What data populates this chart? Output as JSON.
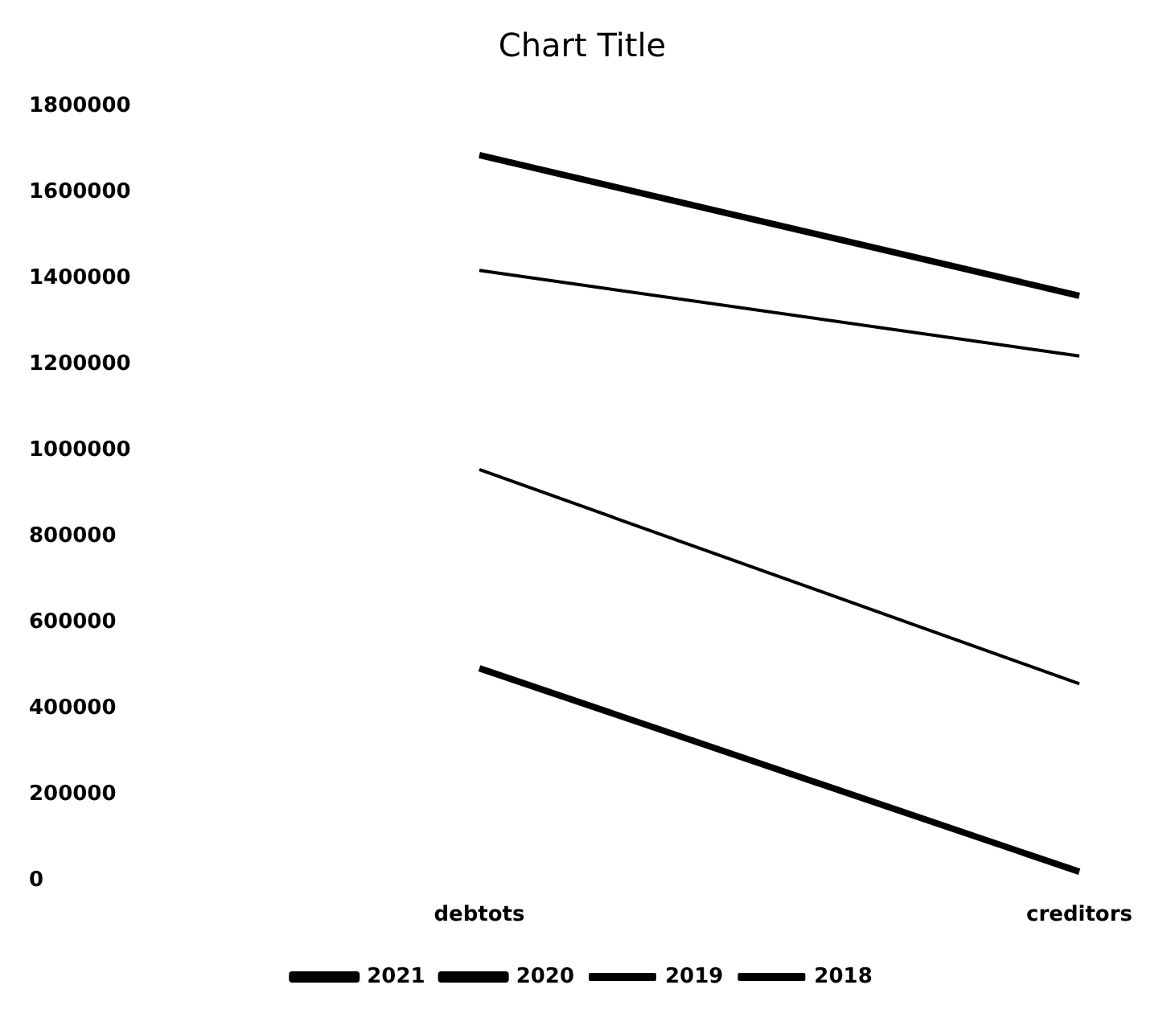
{
  "chart_data": {
    "type": "line",
    "title": "Chart Title",
    "categories": [
      "debtots",
      "creditors"
    ],
    "series": [
      {
        "name": "2021",
        "color": "#000000",
        "values": [
          1686000,
          1359000
        ]
      },
      {
        "name": "2020",
        "color": "#000000",
        "values": [
          493000,
          20000
        ]
      },
      {
        "name": "2019",
        "color": "#000000",
        "values": [
          1418000,
          1219000
        ]
      },
      {
        "name": "2018",
        "color": "#000000",
        "values": [
          955000,
          457000
        ]
      }
    ],
    "ylim": [
      0,
      1800000
    ],
    "yticks": [
      0,
      200000,
      400000,
      600000,
      800000,
      1000000,
      1200000,
      1400000,
      1600000,
      1800000
    ],
    "grid": false,
    "legend": "bottom",
    "marker": "none",
    "line_style": "solid"
  }
}
